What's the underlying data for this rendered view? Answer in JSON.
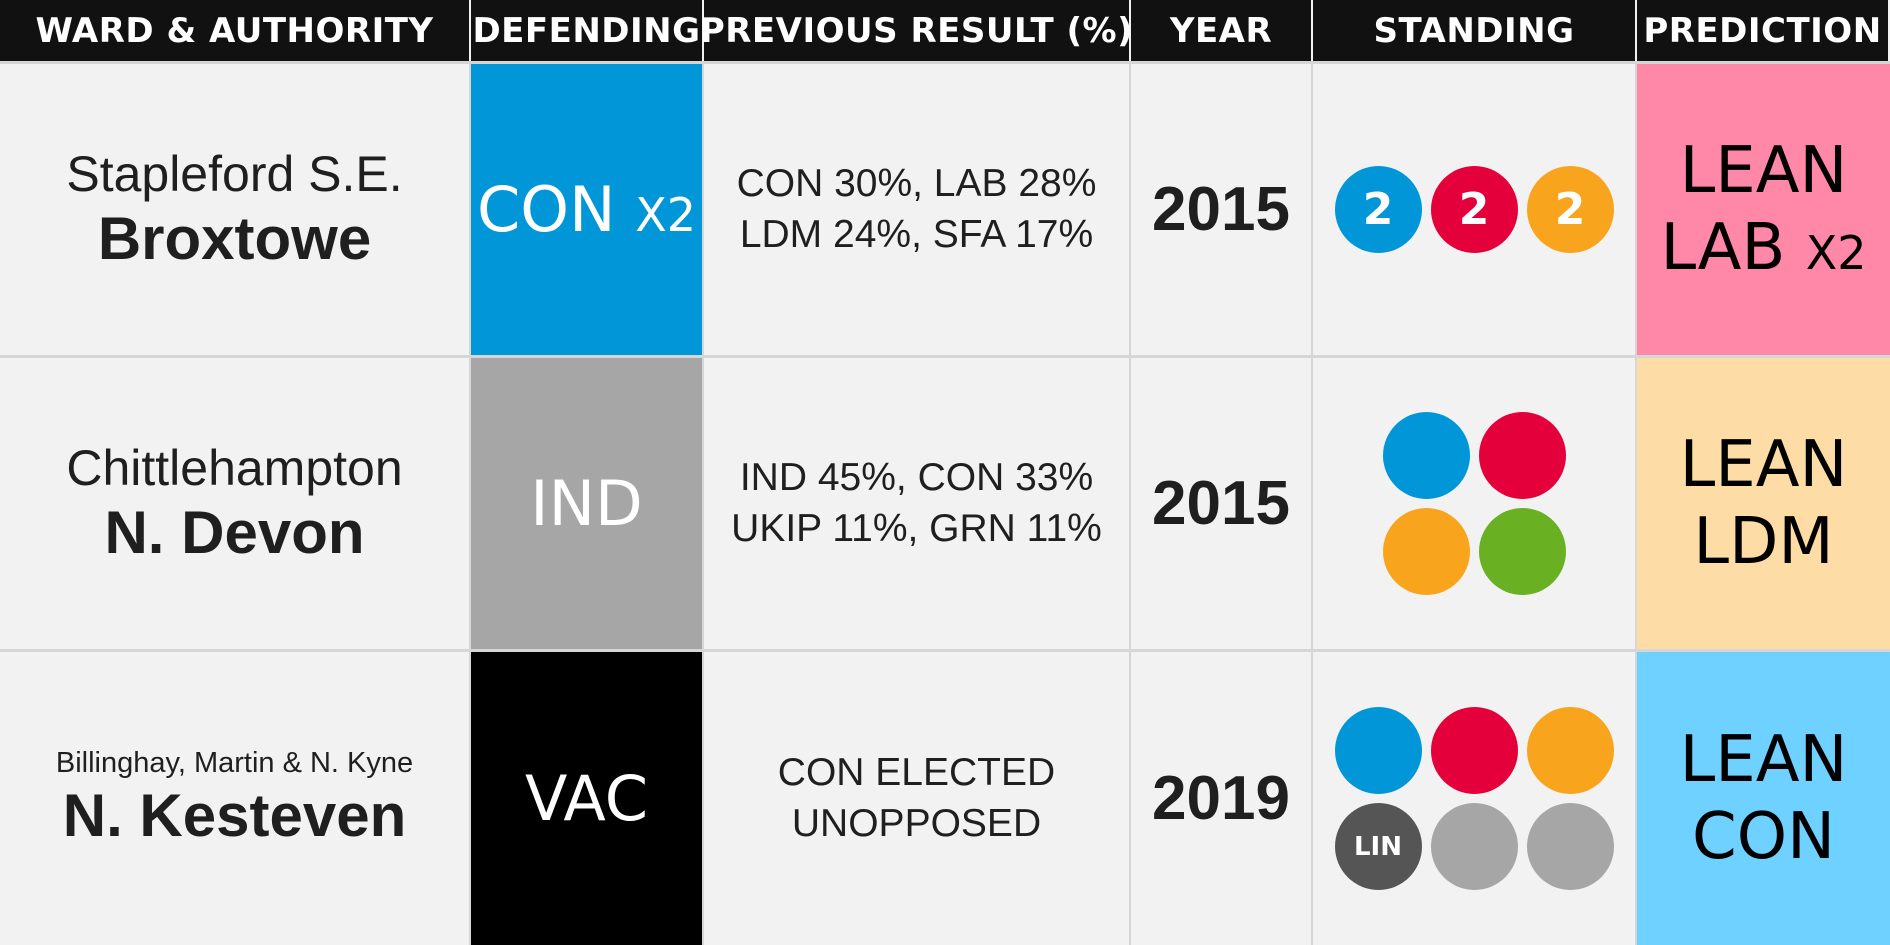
{
  "headers": {
    "ward": "WARD & AUTHORITY",
    "defending": "DEFENDING",
    "previous": "PREVIOUS RESULT (%)",
    "year": "YEAR",
    "standing": "STANDING",
    "prediction": "PREDICTION"
  },
  "colors": {
    "con": "#0096d8",
    "lab": "#e4003b",
    "ldm": "#f8a41d",
    "grn": "#6ab023",
    "ind": "#a6a6a6",
    "vac": "#000000",
    "lin": "#555555",
    "lean_lab": "#ff87a8",
    "lean_ldm": "#fddca5",
    "lean_con": "#6fd1ff"
  },
  "rows": [
    {
      "ward": "Stapleford S.E.",
      "authority": "Broxtowe",
      "defending": "CON",
      "defending_mult": "X2",
      "previous_line1": "CON 30%, LAB 28%",
      "previous_line2": "LDM 24%, SFA 17%",
      "year": "2015",
      "standing": [
        {
          "party": "con",
          "label": "2"
        },
        {
          "party": "lab",
          "label": "2"
        },
        {
          "party": "ldm",
          "label": "2"
        }
      ],
      "prediction_line1": "LEAN",
      "prediction_line2": "LAB",
      "prediction_mult": "X2"
    },
    {
      "ward": "Chittlehampton",
      "authority": "N. Devon",
      "defending": "IND",
      "defending_mult": "",
      "previous_line1": "IND 45%, CON 33%",
      "previous_line2": "UKIP 11%, GRN 11%",
      "year": "2015",
      "standing": [
        {
          "party": "con",
          "label": ""
        },
        {
          "party": "lab",
          "label": ""
        },
        {
          "party": "ldm",
          "label": ""
        },
        {
          "party": "grn",
          "label": ""
        }
      ],
      "prediction_line1": "LEAN",
      "prediction_line2": "LDM",
      "prediction_mult": ""
    },
    {
      "ward": "Billinghay, Martin & N. Kyne",
      "authority": "N. Kesteven",
      "defending": "VAC",
      "defending_mult": "",
      "previous_line1": "CON ELECTED",
      "previous_line2": "UNOPPOSED",
      "year": "2019",
      "standing": [
        {
          "party": "con",
          "label": ""
        },
        {
          "party": "lab",
          "label": ""
        },
        {
          "party": "ldm",
          "label": ""
        },
        {
          "party": "lin",
          "label": "LIN"
        },
        {
          "party": "ind",
          "label": ""
        },
        {
          "party": "ind",
          "label": ""
        }
      ],
      "prediction_line1": "LEAN",
      "prediction_line2": "CON",
      "prediction_mult": ""
    }
  ]
}
